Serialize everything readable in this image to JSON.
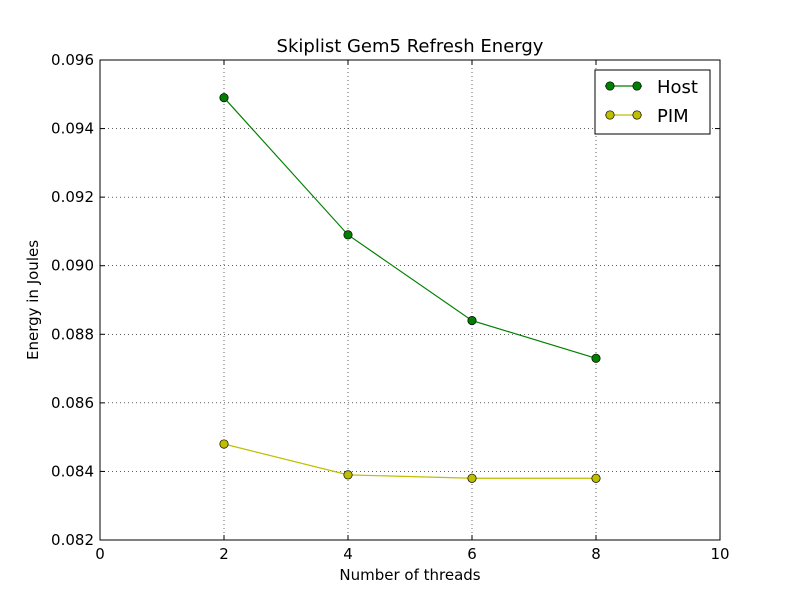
{
  "chart_data": {
    "type": "line",
    "title": "Skiplist Gem5 Refresh Energy",
    "xlabel": "Number of threads",
    "ylabel": "Energy in Joules",
    "xlim": [
      0,
      10
    ],
    "ylim": [
      0.082,
      0.096
    ],
    "x_ticks": [
      "0",
      "2",
      "4",
      "6",
      "8",
      "10"
    ],
    "y_ticks": [
      "0.082",
      "0.084",
      "0.086",
      "0.088",
      "0.090",
      "0.092",
      "0.094",
      "0.096"
    ],
    "grid": true,
    "legend_position": "upper-right",
    "x": [
      2,
      4,
      6,
      8
    ],
    "series": [
      {
        "name": "Host",
        "values": [
          0.0949,
          0.0909,
          0.0884,
          0.0873
        ],
        "color": "#008000",
        "marker": "circle"
      },
      {
        "name": "PIM",
        "values": [
          0.0848,
          0.0839,
          0.0838,
          0.0838
        ],
        "color": "#bfbf00",
        "marker": "circle"
      }
    ]
  }
}
